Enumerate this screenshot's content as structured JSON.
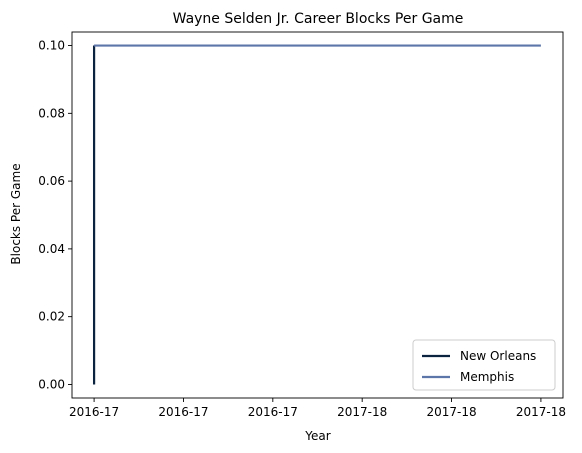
{
  "chart_data": {
    "type": "line",
    "title": "Wayne Selden Jr. Career Blocks Per Game",
    "xlabel": "Year",
    "ylabel": "Blocks Per Game",
    "x_tick_labels": [
      "2016-17",
      "2016-17",
      "2016-17",
      "2017-18",
      "2017-18",
      "2017-18"
    ],
    "x_range": [
      0,
      1
    ],
    "ylim": [
      -0.004,
      0.104
    ],
    "y_ticks": [
      0.0,
      0.02,
      0.04,
      0.06,
      0.08,
      0.1
    ],
    "grid": false,
    "legend_position": "lower-right",
    "series": [
      {
        "name": "New Orleans",
        "color": "#0c2340",
        "points": [
          {
            "x": 0,
            "y": 0.0
          },
          {
            "x": 0,
            "y": 0.1
          }
        ]
      },
      {
        "name": "Memphis",
        "color": "#5d76a9",
        "points": [
          {
            "x": 0,
            "y": 0.1
          },
          {
            "x": 1,
            "y": 0.1
          }
        ]
      }
    ]
  }
}
